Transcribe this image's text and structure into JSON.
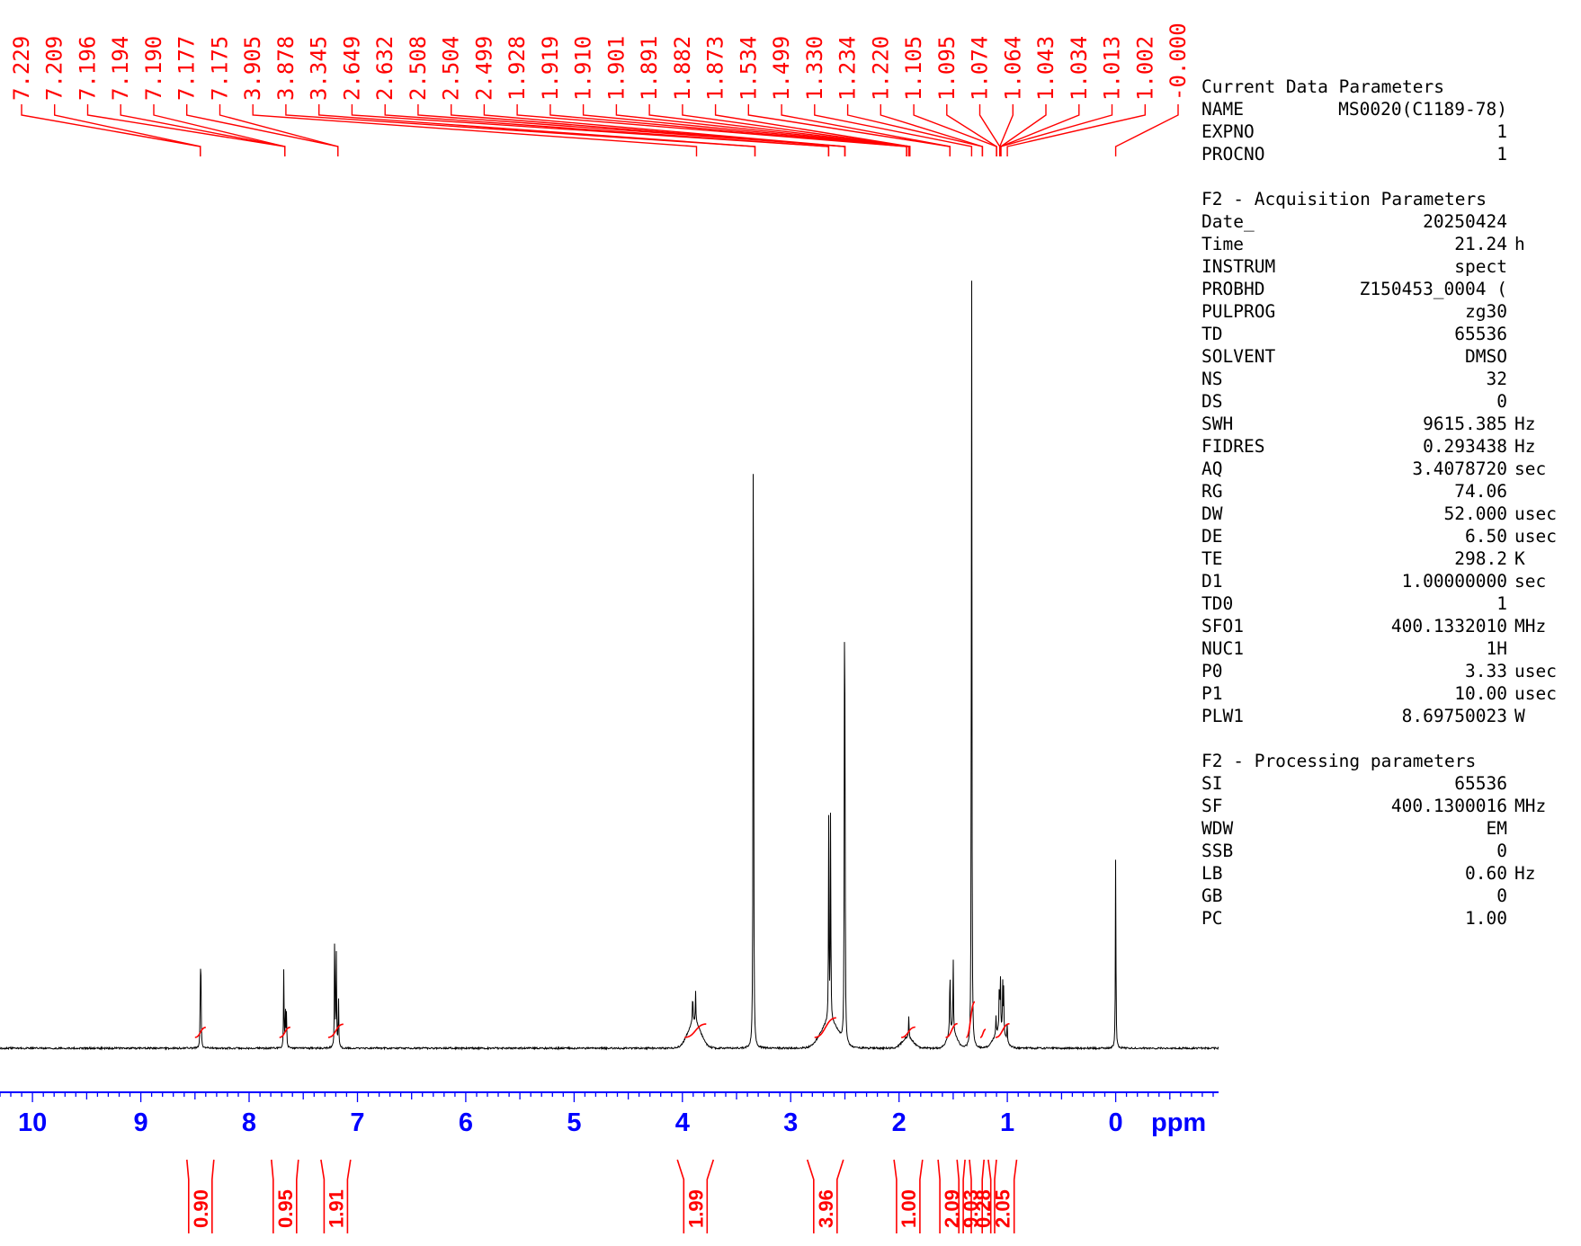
{
  "chart_data": {
    "type": "line",
    "xlabel": "ppm",
    "xlim": [
      10.3,
      -0.95
    ],
    "x_ticks": [
      "10",
      "9",
      "8",
      "7",
      "6",
      "5",
      "4",
      "3",
      "2",
      "1",
      "0"
    ],
    "peak_labels": [
      "7.229",
      "7.209",
      "7.196",
      "7.194",
      "7.190",
      "7.177",
      "7.175",
      "3.905",
      "3.878",
      "3.345",
      "2.649",
      "2.632",
      "2.508",
      "2.504",
      "2.499",
      "1.928",
      "1.919",
      "1.910",
      "1.901",
      "1.891",
      "1.882",
      "1.873",
      "1.534",
      "1.499",
      "1.330",
      "1.234",
      "1.220",
      "1.105",
      "1.095",
      "1.074",
      "1.064",
      "1.043",
      "1.034",
      "1.013",
      "1.002",
      "-0.000"
    ],
    "peak_targets_ppm": [
      8.45,
      8.45,
      7.67,
      7.67,
      7.67,
      7.18,
      7.18,
      3.87,
      3.33,
      3.33,
      2.65,
      2.65,
      2.5,
      2.5,
      2.5,
      1.93,
      1.93,
      1.91,
      1.9,
      1.9,
      1.9,
      1.9,
      1.53,
      1.53,
      1.33,
      1.23,
      1.23,
      1.1,
      1.1,
      1.07,
      1.07,
      1.06,
      1.06,
      1.06,
      1.0,
      0.0
    ],
    "peaks": [
      {
        "ppm": 8.45,
        "height": 0.08
      },
      {
        "ppm": 8.445,
        "height": 0.07
      },
      {
        "ppm": 7.68,
        "height": 0.09
      },
      {
        "ppm": 7.665,
        "height": 0.045
      },
      {
        "ppm": 7.655,
        "height": 0.04
      },
      {
        "ppm": 7.21,
        "height": 0.145
      },
      {
        "ppm": 7.195,
        "height": 0.105
      },
      {
        "ppm": 7.175,
        "height": 0.06
      },
      {
        "ppm": 3.905,
        "height": 0.035
      },
      {
        "ppm": 3.878,
        "height": 0.035
      },
      {
        "ppm": 3.345,
        "height": 0.86
      },
      {
        "ppm": 2.649,
        "height": 0.23
      },
      {
        "ppm": 2.632,
        "height": 0.24
      },
      {
        "ppm": 2.504,
        "height": 0.38
      },
      {
        "ppm": 2.499,
        "height": 0.3
      },
      {
        "ppm": 1.91,
        "height": 0.025
      },
      {
        "ppm": 1.53,
        "height": 0.08
      },
      {
        "ppm": 1.5,
        "height": 0.085
      },
      {
        "ppm": 1.33,
        "height": 0.97
      },
      {
        "ppm": 1.105,
        "height": 0.02
      },
      {
        "ppm": 1.074,
        "height": 0.06
      },
      {
        "ppm": 1.064,
        "height": 0.06
      },
      {
        "ppm": 1.043,
        "height": 0.055
      },
      {
        "ppm": 1.034,
        "height": 0.05
      },
      {
        "ppm": 1.002,
        "height": 0.02
      },
      {
        "ppm": 0.0,
        "height": 0.225
      }
    ],
    "integrals": [
      {
        "value": "0.90",
        "ppm_from": 8.5,
        "ppm_to": 8.4
      },
      {
        "value": "0.95",
        "ppm_from": 7.72,
        "ppm_to": 7.62
      },
      {
        "value": "1.91",
        "ppm_from": 7.27,
        "ppm_to": 7.13
      },
      {
        "value": "1.99",
        "ppm_from": 3.98,
        "ppm_to": 3.78
      },
      {
        "value": "3.96",
        "ppm_from": 2.78,
        "ppm_to": 2.58
      },
      {
        "value": "1.00",
        "ppm_from": 1.98,
        "ppm_to": 1.85
      },
      {
        "value": "2.09",
        "ppm_from": 1.57,
        "ppm_to": 1.46
      },
      {
        "value": "9.03",
        "ppm_from": 1.38,
        "ppm_to": 1.3
      },
      {
        "value": "0.28",
        "ppm_from": 1.25,
        "ppm_to": 1.2
      },
      {
        "value": "2.05",
        "ppm_from": 1.11,
        "ppm_to": 0.98
      }
    ]
  },
  "parameters": [
    {
      "title": "Current Data Parameters"
    },
    {
      "key": "NAME",
      "value": "MS0020(C1189-78)",
      "unit": ""
    },
    {
      "key": "EXPNO",
      "value": "1",
      "unit": ""
    },
    {
      "key": "PROCNO",
      "value": "1",
      "unit": ""
    },
    {
      "gap": true
    },
    {
      "title": "F2 - Acquisition Parameters"
    },
    {
      "key": "Date_",
      "value": "20250424",
      "unit": ""
    },
    {
      "key": "Time",
      "value": "21.24",
      "unit": "h"
    },
    {
      "key": "INSTRUM",
      "value": "spect",
      "unit": ""
    },
    {
      "key": "PROBHD",
      "value": "Z150453_0004 (",
      "unit": ""
    },
    {
      "key": "PULPROG",
      "value": "zg30",
      "unit": ""
    },
    {
      "key": "TD",
      "value": "65536",
      "unit": ""
    },
    {
      "key": "SOLVENT",
      "value": "DMSO",
      "unit": ""
    },
    {
      "key": "NS",
      "value": "32",
      "unit": ""
    },
    {
      "key": "DS",
      "value": "0",
      "unit": ""
    },
    {
      "key": "SWH",
      "value": "9615.385",
      "unit": "Hz"
    },
    {
      "key": "FIDRES",
      "value": "0.293438",
      "unit": "Hz"
    },
    {
      "key": "AQ",
      "value": "3.4078720",
      "unit": "sec"
    },
    {
      "key": "RG",
      "value": "74.06",
      "unit": ""
    },
    {
      "key": "DW",
      "value": "52.000",
      "unit": "usec"
    },
    {
      "key": "DE",
      "value": "6.50",
      "unit": "usec"
    },
    {
      "key": "TE",
      "value": "298.2",
      "unit": "K"
    },
    {
      "key": "D1",
      "value": "1.00000000",
      "unit": "sec"
    },
    {
      "key": "TD0",
      "value": "1",
      "unit": ""
    },
    {
      "key": "SFO1",
      "value": "400.1332010",
      "unit": "MHz"
    },
    {
      "key": "NUC1",
      "value": "1H",
      "unit": ""
    },
    {
      "key": "P0",
      "value": "3.33",
      "unit": "usec"
    },
    {
      "key": "P1",
      "value": "10.00",
      "unit": "usec"
    },
    {
      "key": "PLW1",
      "value": "8.69750023",
      "unit": "W"
    },
    {
      "gap": true
    },
    {
      "title": "F2 - Processing parameters"
    },
    {
      "key": "SI",
      "value": "65536",
      "unit": ""
    },
    {
      "key": "SF",
      "value": "400.1300016",
      "unit": "MHz"
    },
    {
      "key": "WDW",
      "value": "EM",
      "unit": ""
    },
    {
      "key": "SSB",
      "value": "0",
      "unit": ""
    },
    {
      "key": "LB",
      "value": "0.60",
      "unit": "Hz"
    },
    {
      "key": "GB",
      "value": "0",
      "unit": ""
    },
    {
      "key": "PC",
      "value": "1.00",
      "unit": ""
    }
  ],
  "colors": {
    "peak_label": "#ff0000",
    "integral": "#ff0000",
    "axis": "#0000ff",
    "trace": "#000000"
  }
}
